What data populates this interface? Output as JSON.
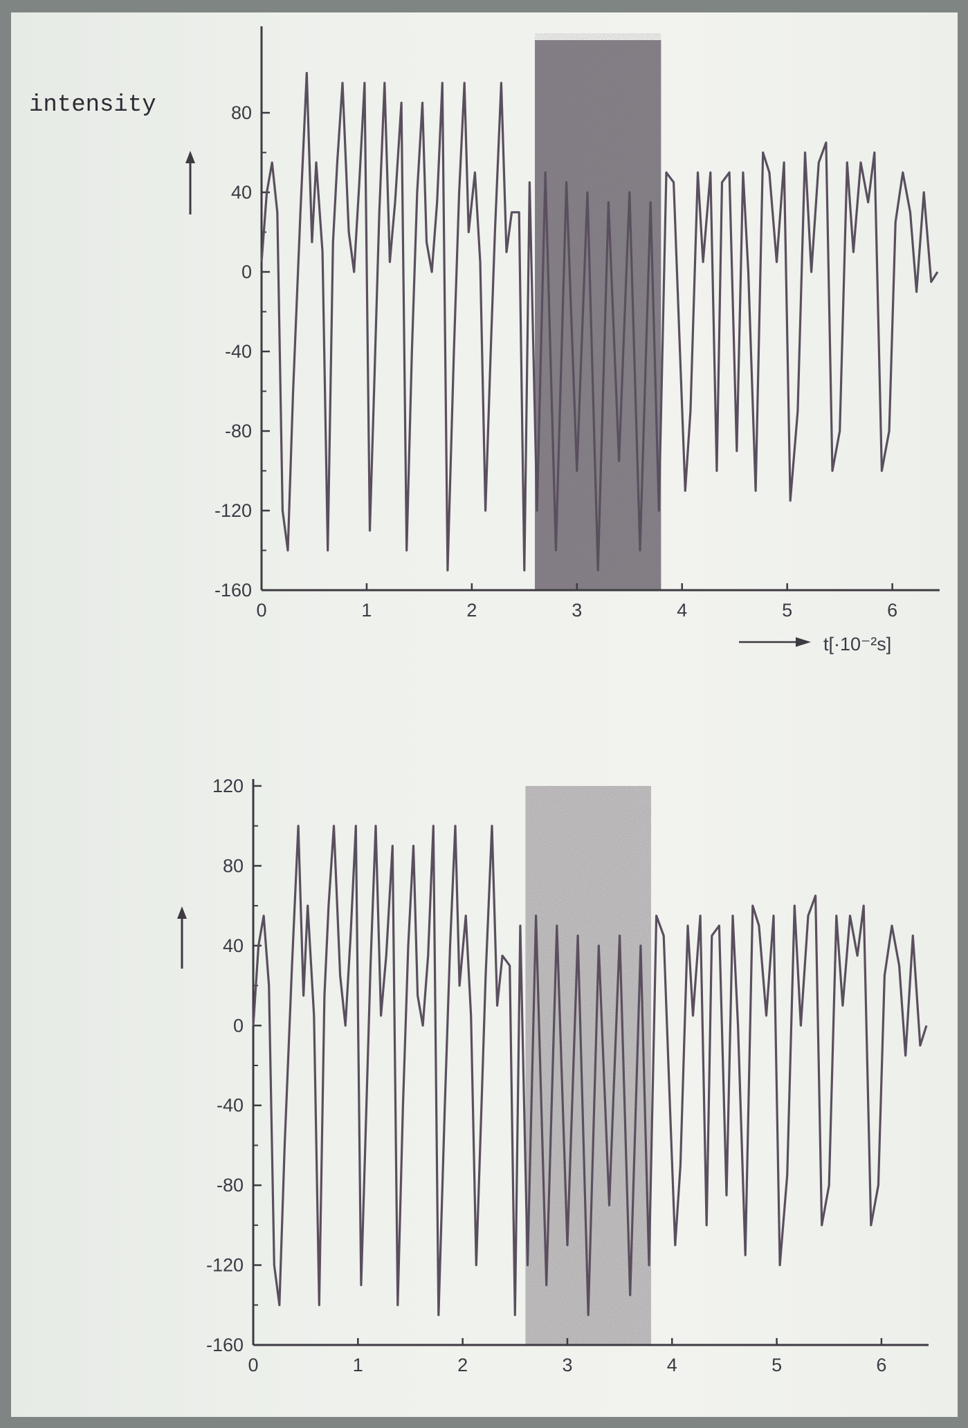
{
  "chart_data": [
    {
      "type": "line",
      "ylabel": "intensity",
      "xlabel": "t[·10⁻²s]",
      "xlim": [
        0,
        6.45
      ],
      "ylim": [
        -160,
        120
      ],
      "x_ticks": [
        "0",
        "1",
        "2",
        "3",
        "4",
        "5",
        "6"
      ],
      "y_ticks": [
        "80",
        "40",
        "0",
        "-40",
        "-80",
        "-120",
        "-160"
      ],
      "y_tick_values": [
        80,
        40,
        0,
        -40,
        -80,
        -120,
        -160
      ],
      "shaded_region": [
        2.6,
        3.8
      ],
      "line_color": "#5a4f5e",
      "x": [
        0,
        0.05,
        0.1,
        0.15,
        0.2,
        0.25,
        0.3,
        0.37,
        0.43,
        0.48,
        0.52,
        0.58,
        0.63,
        0.68,
        0.72,
        0.77,
        0.83,
        0.88,
        0.93,
        0.98,
        1.03,
        1.07,
        1.12,
        1.17,
        1.22,
        1.27,
        1.33,
        1.38,
        1.43,
        1.48,
        1.53,
        1.57,
        1.62,
        1.67,
        1.72,
        1.77,
        1.83,
        1.88,
        1.93,
        1.97,
        2.03,
        2.08,
        2.13,
        2.18,
        2.22,
        2.28,
        2.33,
        2.38,
        2.45,
        2.5,
        2.55,
        2.62,
        2.7,
        2.8,
        2.9,
        3.0,
        3.1,
        3.2,
        3.3,
        3.4,
        3.5,
        3.6,
        3.7,
        3.78,
        3.85,
        3.92,
        3.98,
        4.03,
        4.08,
        4.15,
        4.2,
        4.27,
        4.33,
        4.38,
        4.45,
        4.52,
        4.58,
        4.63,
        4.7,
        4.77,
        4.83,
        4.9,
        4.97,
        5.03,
        5.1,
        5.17,
        5.23,
        5.3,
        5.37,
        5.43,
        5.5,
        5.57,
        5.63,
        5.7,
        5.77,
        5.83,
        5.9,
        5.97,
        6.03,
        6.1,
        6.17,
        6.23,
        6.3,
        6.37,
        6.43
      ],
      "y": [
        5,
        40,
        55,
        30,
        -120,
        -140,
        -60,
        30,
        100,
        15,
        55,
        10,
        -140,
        15,
        55,
        95,
        20,
        0,
        45,
        95,
        -130,
        -60,
        30,
        95,
        5,
        35,
        85,
        -140,
        -40,
        40,
        85,
        15,
        0,
        35,
        95,
        -150,
        -40,
        40,
        95,
        20,
        50,
        5,
        -120,
        -40,
        20,
        95,
        10,
        30,
        30,
        -150,
        45,
        -120,
        50,
        -140,
        45,
        -100,
        40,
        -150,
        35,
        -95,
        40,
        -140,
        35,
        -120,
        50,
        45,
        -40,
        -110,
        -70,
        50,
        5,
        50,
        -100,
        45,
        50,
        -90,
        50,
        0,
        -110,
        60,
        50,
        5,
        55,
        -115,
        -70,
        60,
        0,
        55,
        65,
        -100,
        -80,
        55,
        10,
        55,
        35,
        60,
        -100,
        -80,
        25,
        50,
        30,
        -10,
        40,
        -5,
        0
      ]
    },
    {
      "type": "line",
      "ylabel": "",
      "xlabel": "",
      "xlim": [
        0,
        6.45
      ],
      "ylim": [
        -160,
        120
      ],
      "x_ticks": [
        "0",
        "1",
        "2",
        "3",
        "4",
        "5",
        "6"
      ],
      "y_ticks": [
        "120",
        "80",
        "40",
        "0",
        "-40",
        "-80",
        "-120",
        "-160"
      ],
      "y_tick_values": [
        120,
        80,
        40,
        0,
        -40,
        -80,
        -120,
        -160
      ],
      "shaded_region": [
        2.6,
        3.8
      ],
      "line_color": "#5a4f5e",
      "x": [
        0,
        0.05,
        0.1,
        0.15,
        0.2,
        0.25,
        0.3,
        0.37,
        0.43,
        0.48,
        0.52,
        0.58,
        0.63,
        0.68,
        0.72,
        0.77,
        0.83,
        0.88,
        0.93,
        0.98,
        1.03,
        1.07,
        1.12,
        1.17,
        1.22,
        1.27,
        1.33,
        1.38,
        1.43,
        1.48,
        1.53,
        1.57,
        1.62,
        1.67,
        1.72,
        1.77,
        1.83,
        1.88,
        1.93,
        1.97,
        2.03,
        2.08,
        2.13,
        2.18,
        2.22,
        2.28,
        2.33,
        2.38,
        2.45,
        2.5,
        2.55,
        2.62,
        2.7,
        2.8,
        2.9,
        3.0,
        3.1,
        3.2,
        3.3,
        3.4,
        3.5,
        3.6,
        3.7,
        3.78,
        3.85,
        3.92,
        3.98,
        4.03,
        4.08,
        4.15,
        4.2,
        4.27,
        4.33,
        4.38,
        4.45,
        4.52,
        4.58,
        4.63,
        4.7,
        4.77,
        4.83,
        4.9,
        4.97,
        5.03,
        5.1,
        5.17,
        5.23,
        5.3,
        5.37,
        5.43,
        5.5,
        5.57,
        5.63,
        5.7,
        5.77,
        5.83,
        5.9,
        5.97,
        6.03,
        6.1,
        6.17,
        6.23,
        6.3,
        6.37,
        6.43
      ],
      "y": [
        0,
        40,
        55,
        20,
        -120,
        -140,
        -60,
        30,
        100,
        15,
        60,
        5,
        -140,
        15,
        60,
        100,
        25,
        0,
        45,
        100,
        -130,
        -60,
        30,
        100,
        5,
        35,
        90,
        -140,
        -40,
        40,
        90,
        15,
        0,
        35,
        100,
        -145,
        -40,
        40,
        100,
        20,
        55,
        5,
        -120,
        -40,
        25,
        100,
        10,
        35,
        30,
        -145,
        50,
        -120,
        55,
        -130,
        50,
        -110,
        45,
        -145,
        40,
        -90,
        45,
        -135,
        40,
        -120,
        55,
        45,
        -40,
        -110,
        -70,
        50,
        5,
        55,
        -100,
        45,
        50,
        -85,
        55,
        0,
        -115,
        60,
        50,
        5,
        55,
        -120,
        -75,
        60,
        0,
        55,
        65,
        -100,
        -80,
        55,
        10,
        55,
        35,
        60,
        -100,
        -80,
        25,
        50,
        30,
        -15,
        45,
        -10,
        0
      ]
    }
  ]
}
